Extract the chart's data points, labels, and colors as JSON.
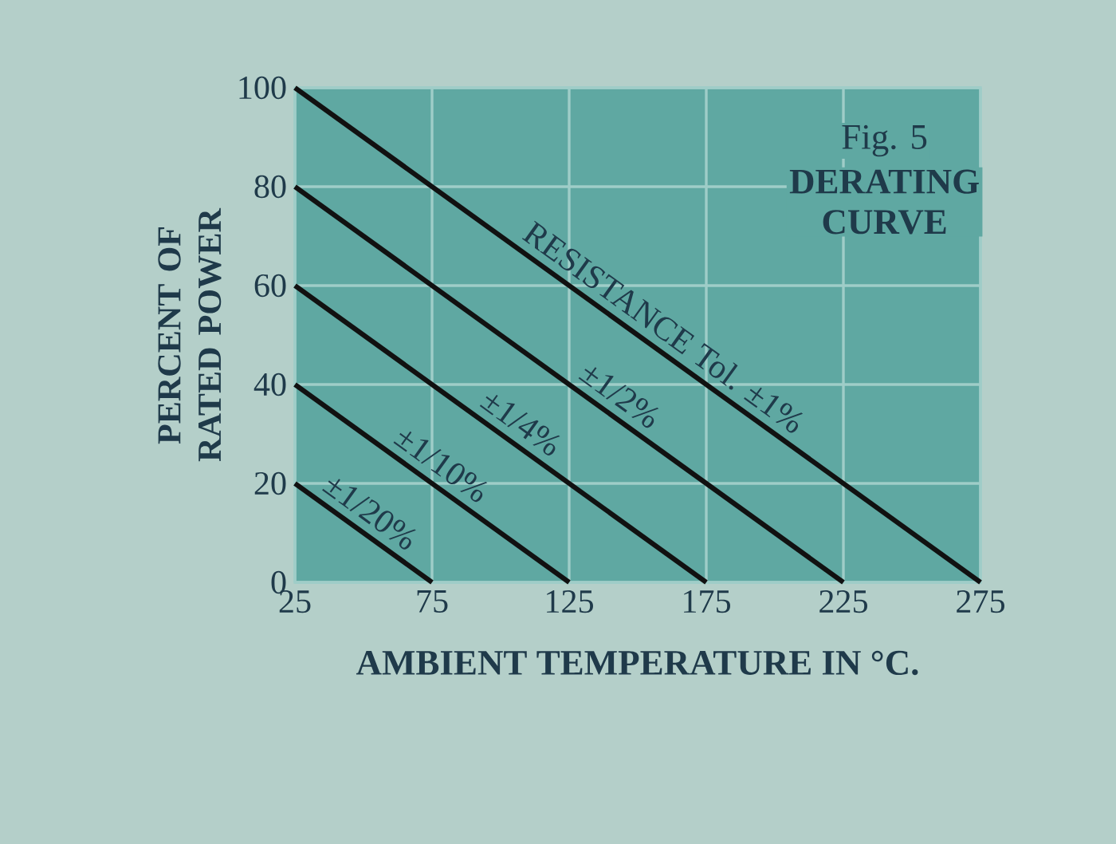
{
  "chart_data": {
    "type": "line",
    "title": "Fig. 5",
    "subtitle": "DERATING CURVE",
    "xlabel": "AMBIENT TEMPERATURE IN °C.",
    "ylabel": "PERCENT OF RATED POWER",
    "xlim": [
      25,
      275
    ],
    "ylim": [
      0,
      100
    ],
    "xticks": [
      25,
      75,
      125,
      175,
      225,
      275
    ],
    "yticks": [
      0,
      20,
      40,
      60,
      80,
      100
    ],
    "grid": true,
    "marker": "none",
    "line_style": "solid",
    "series": [
      {
        "name": "RESISTANCE Tol. ±1%",
        "color": "#111111",
        "x": [
          25,
          275
        ],
        "values": [
          100,
          0
        ]
      },
      {
        "name": "±1/2%",
        "color": "#111111",
        "x": [
          25,
          225
        ],
        "values": [
          80,
          0
        ]
      },
      {
        "name": "±1/4%",
        "color": "#111111",
        "x": [
          25,
          175
        ],
        "values": [
          60,
          0
        ]
      },
      {
        "name": "±1/10%",
        "color": "#111111",
        "x": [
          25,
          125
        ],
        "values": [
          40,
          0
        ]
      },
      {
        "name": "±1/20%",
        "color": "#111111",
        "x": [
          25,
          75
        ],
        "values": [
          20,
          0
        ]
      }
    ]
  }
}
